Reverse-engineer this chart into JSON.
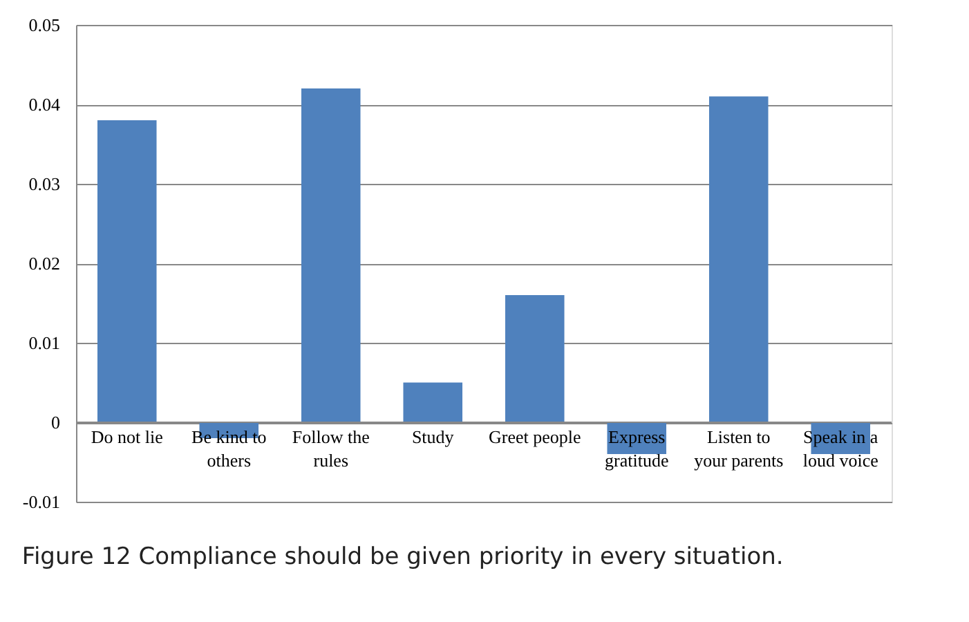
{
  "chart_data": {
    "type": "bar",
    "title": "Figure 12 Compliance should be given priority in every situation.",
    "categories": [
      "Do not lie",
      "Be kind to others",
      "Follow the rules",
      "Study",
      "Greet people",
      "Express gratitude",
      "Listen to your parents",
      "Speak in a loud voice"
    ],
    "values": [
      0.038,
      -0.002,
      0.042,
      0.005,
      0.016,
      -0.004,
      0.041,
      -0.004
    ],
    "color": "#4f81bd",
    "ylim": [
      -0.01,
      0.05
    ],
    "yticks": [
      -0.01,
      0,
      0.01,
      0.02,
      0.03,
      0.04,
      0.05
    ],
    "grid": "y"
  }
}
